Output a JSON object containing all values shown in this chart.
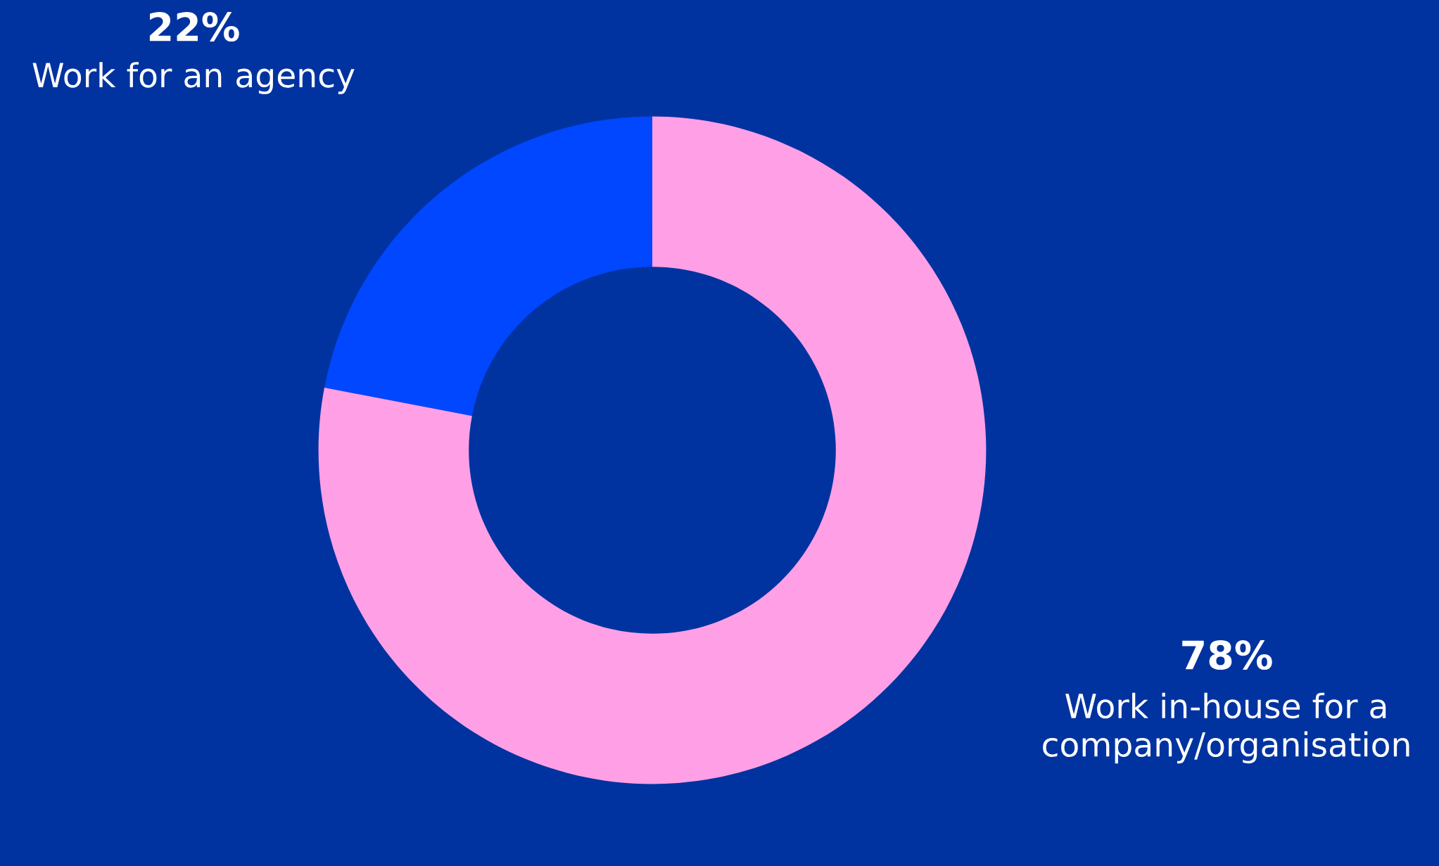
{
  "chart_data": {
    "type": "donut",
    "categories": [
      "Work for an agency",
      "Work in-house for a\ncompany/organisation"
    ],
    "values": [
      22,
      78
    ],
    "colors": [
      "#0047ff",
      "#ffa0e6"
    ],
    "value_labels": [
      "22%",
      "78%"
    ]
  }
}
